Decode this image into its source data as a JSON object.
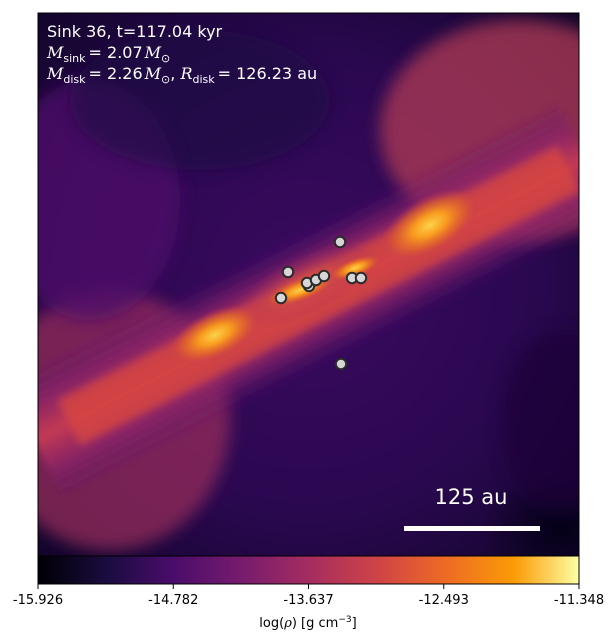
{
  "figure": {
    "annotation": {
      "line1": "Sink 36, t=117.04 kyr",
      "line2_sub": "sink",
      "line2_val": "= 2.07",
      "line3_sub": "disk",
      "line3_val": "= 2.26",
      "line3_r_sub": "disk",
      "line3_r_val": "= 126.23 au"
    },
    "scalebar": {
      "label": "125 au"
    },
    "colorbar": {
      "colormap": "inferno",
      "ticks": [
        "-15.926",
        "-14.782",
        "-13.637",
        "-12.493",
        "-11.348"
      ],
      "label_prefix": "log(",
      "label_suffix": ") [g cm",
      "label_exp": "−3",
      "label_end": "]"
    },
    "colors": {
      "sink_fill": "#d6d6d6",
      "sink_stroke": "#2b2b2b",
      "text": "#ffffff"
    },
    "sinks_count_visible": 11
  }
}
